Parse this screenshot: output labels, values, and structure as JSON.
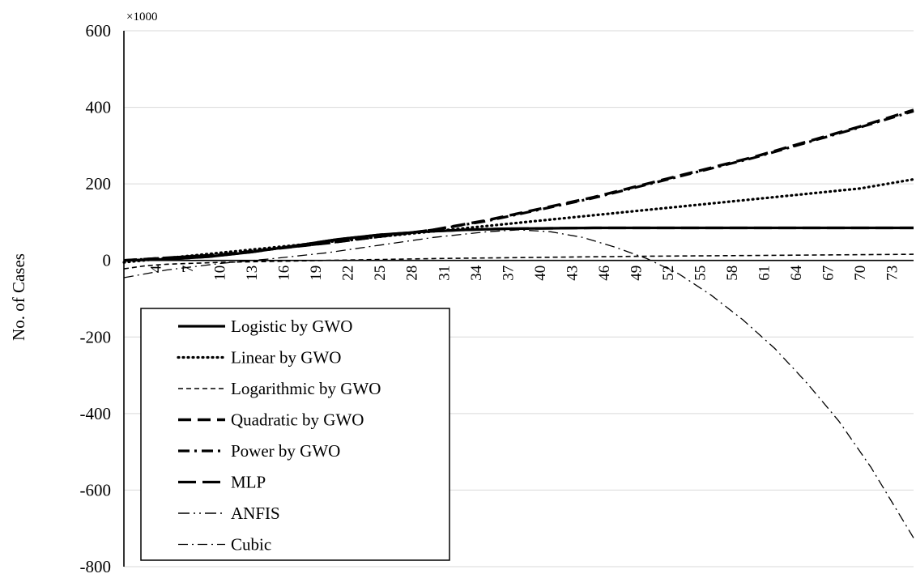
{
  "chart_data": {
    "type": "line",
    "multiplier_label": "×1000",
    "ylabel": "No. of Cases",
    "xlabel": "",
    "ylim": [
      -800,
      600
    ],
    "y_ticks": [
      600,
      400,
      200,
      0,
      -200,
      -400,
      -600,
      -800
    ],
    "x_range": [
      1,
      75
    ],
    "x_ticks": [
      4,
      7,
      10,
      13,
      16,
      19,
      22,
      25,
      28,
      31,
      34,
      37,
      40,
      43,
      46,
      49,
      52,
      55,
      58,
      61,
      64,
      67,
      70,
      73
    ],
    "grid": "horizontal",
    "legend_position": "bottom-left",
    "series": [
      {
        "name": "Logistic by GWO",
        "style": "solid",
        "x": [
          1,
          5,
          9,
          13,
          17,
          21,
          25,
          29,
          33,
          37,
          41,
          45,
          50,
          55,
          60,
          65,
          70,
          75
        ],
        "y": [
          0,
          3,
          10,
          22,
          38,
          55,
          67,
          75,
          80,
          83,
          84,
          85,
          85,
          85,
          85,
          85,
          85,
          85
        ]
      },
      {
        "name": "Linear by GWO",
        "style": "dotted",
        "x": [
          1,
          10,
          20,
          30,
          40,
          50,
          60,
          70,
          75
        ],
        "y": [
          -5,
          20,
          48,
          76,
          104,
          132,
          160,
          188,
          212
        ]
      },
      {
        "name": "Logarithmic by GWO",
        "style": "dashed",
        "x": [
          1,
          3,
          5,
          10,
          20,
          30,
          40,
          50,
          60,
          70,
          75
        ],
        "y": [
          -22,
          -14,
          -10,
          -5,
          0,
          5,
          8,
          11,
          13,
          15,
          16
        ]
      },
      {
        "name": "Quadratic by GWO",
        "style": "long-dash",
        "x": [
          1,
          10,
          20,
          30,
          35,
          40,
          45,
          50,
          55,
          60,
          65,
          70,
          75
        ],
        "y": [
          0,
          15,
          45,
          80,
          105,
          135,
          165,
          200,
          235,
          270,
          310,
          350,
          393
        ]
      },
      {
        "name": "Power by GWO",
        "style": "dash-dot",
        "x": [
          1,
          10,
          20,
          30,
          35,
          40,
          45,
          50,
          55,
          60,
          65,
          70,
          75
        ],
        "y": [
          0,
          15,
          45,
          80,
          103,
          133,
          163,
          198,
          233,
          268,
          308,
          348,
          390
        ]
      },
      {
        "name": "MLP",
        "style": "thick-long-dash",
        "x": [
          1,
          5,
          9,
          13,
          17,
          21,
          25,
          29,
          33,
          37,
          41,
          45,
          50,
          55,
          60,
          65,
          70,
          75
        ],
        "y": [
          0,
          3,
          10,
          22,
          38,
          55,
          67,
          75,
          80,
          83,
          84,
          85,
          85,
          85,
          85,
          85,
          85,
          85
        ]
      },
      {
        "name": "ANFIS",
        "style": "long-dash-dot-dot",
        "x": [
          1,
          5,
          9,
          13,
          17,
          21,
          25,
          29,
          33,
          37,
          41,
          45,
          50,
          55,
          60,
          65,
          70,
          75
        ],
        "y": [
          0,
          3,
          10,
          22,
          38,
          55,
          67,
          75,
          80,
          83,
          84,
          85,
          85,
          85,
          85,
          85,
          85,
          85
        ]
      },
      {
        "name": "Cubic",
        "style": "thin-dash-dot",
        "x": [
          1,
          5,
          10,
          15,
          20,
          25,
          30,
          35,
          38,
          41,
          44,
          47,
          50,
          53,
          56,
          59,
          62,
          65,
          68,
          71,
          75
        ],
        "y": [
          -45,
          -25,
          -8,
          5,
          20,
          40,
          60,
          75,
          80,
          75,
          60,
          35,
          5,
          -35,
          -90,
          -155,
          -230,
          -320,
          -420,
          -540,
          -725
        ]
      }
    ]
  }
}
